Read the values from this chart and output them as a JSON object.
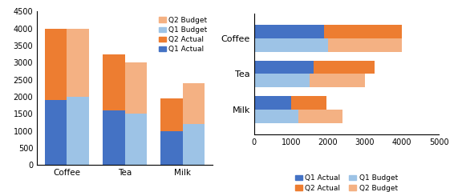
{
  "categories": [
    "Coffee",
    "Tea",
    "Milk"
  ],
  "q1_actual": [
    1900,
    1600,
    1000
  ],
  "q2_actual": [
    2100,
    1650,
    950
  ],
  "q1_budget": [
    2000,
    1500,
    1200
  ],
  "q2_budget": [
    2000,
    1500,
    1200
  ],
  "color_q1_actual": "#4472C4",
  "color_q2_actual": "#ED7D31",
  "color_q1_budget": "#9DC3E6",
  "color_q2_budget": "#F4B183",
  "left_ylim": [
    0,
    4500
  ],
  "left_yticks": [
    0,
    500,
    1000,
    1500,
    2000,
    2500,
    3000,
    3500,
    4000,
    4500
  ],
  "right_xlim": [
    0,
    5000
  ],
  "right_xticks": [
    0,
    1000,
    2000,
    3000,
    4000,
    5000
  ]
}
